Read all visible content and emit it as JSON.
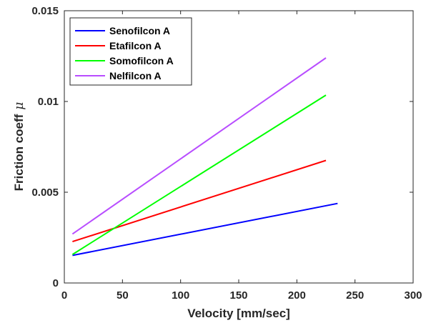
{
  "chart_data": {
    "type": "line",
    "title": "",
    "xlabel": "Velocity [mm/sec]",
    "ylabel": "Friction coeff",
    "ylabel_symbol": "μ",
    "xlim": [
      0,
      300
    ],
    "ylim": [
      0,
      0.015
    ],
    "xticks": [
      0,
      50,
      100,
      150,
      200,
      250,
      300
    ],
    "yticks": [
      0,
      0.005,
      0.01,
      0.015
    ],
    "xtick_labels": [
      "0",
      "50",
      "100",
      "150",
      "200",
      "250",
      "300"
    ],
    "ytick_labels": [
      "0",
      "0.005",
      "0.01",
      "0.015"
    ],
    "grid": false,
    "legend_position": "top-left",
    "series": [
      {
        "name": "Senofilcon A",
        "color": "#0000ff",
        "x": [
          7,
          235
        ],
        "y": [
          0.00152,
          0.00438
        ]
      },
      {
        "name": "Etafilcon A",
        "color": "#ff0000",
        "x": [
          7,
          225
        ],
        "y": [
          0.00228,
          0.00675
        ]
      },
      {
        "name": "Somofilcon A",
        "color": "#00ff00",
        "x": [
          7,
          225
        ],
        "y": [
          0.00157,
          0.01035
        ]
      },
      {
        "name": "Nelfilcon A",
        "color": "#b84dff",
        "x": [
          7,
          225
        ],
        "y": [
          0.0027,
          0.0124
        ]
      }
    ]
  }
}
